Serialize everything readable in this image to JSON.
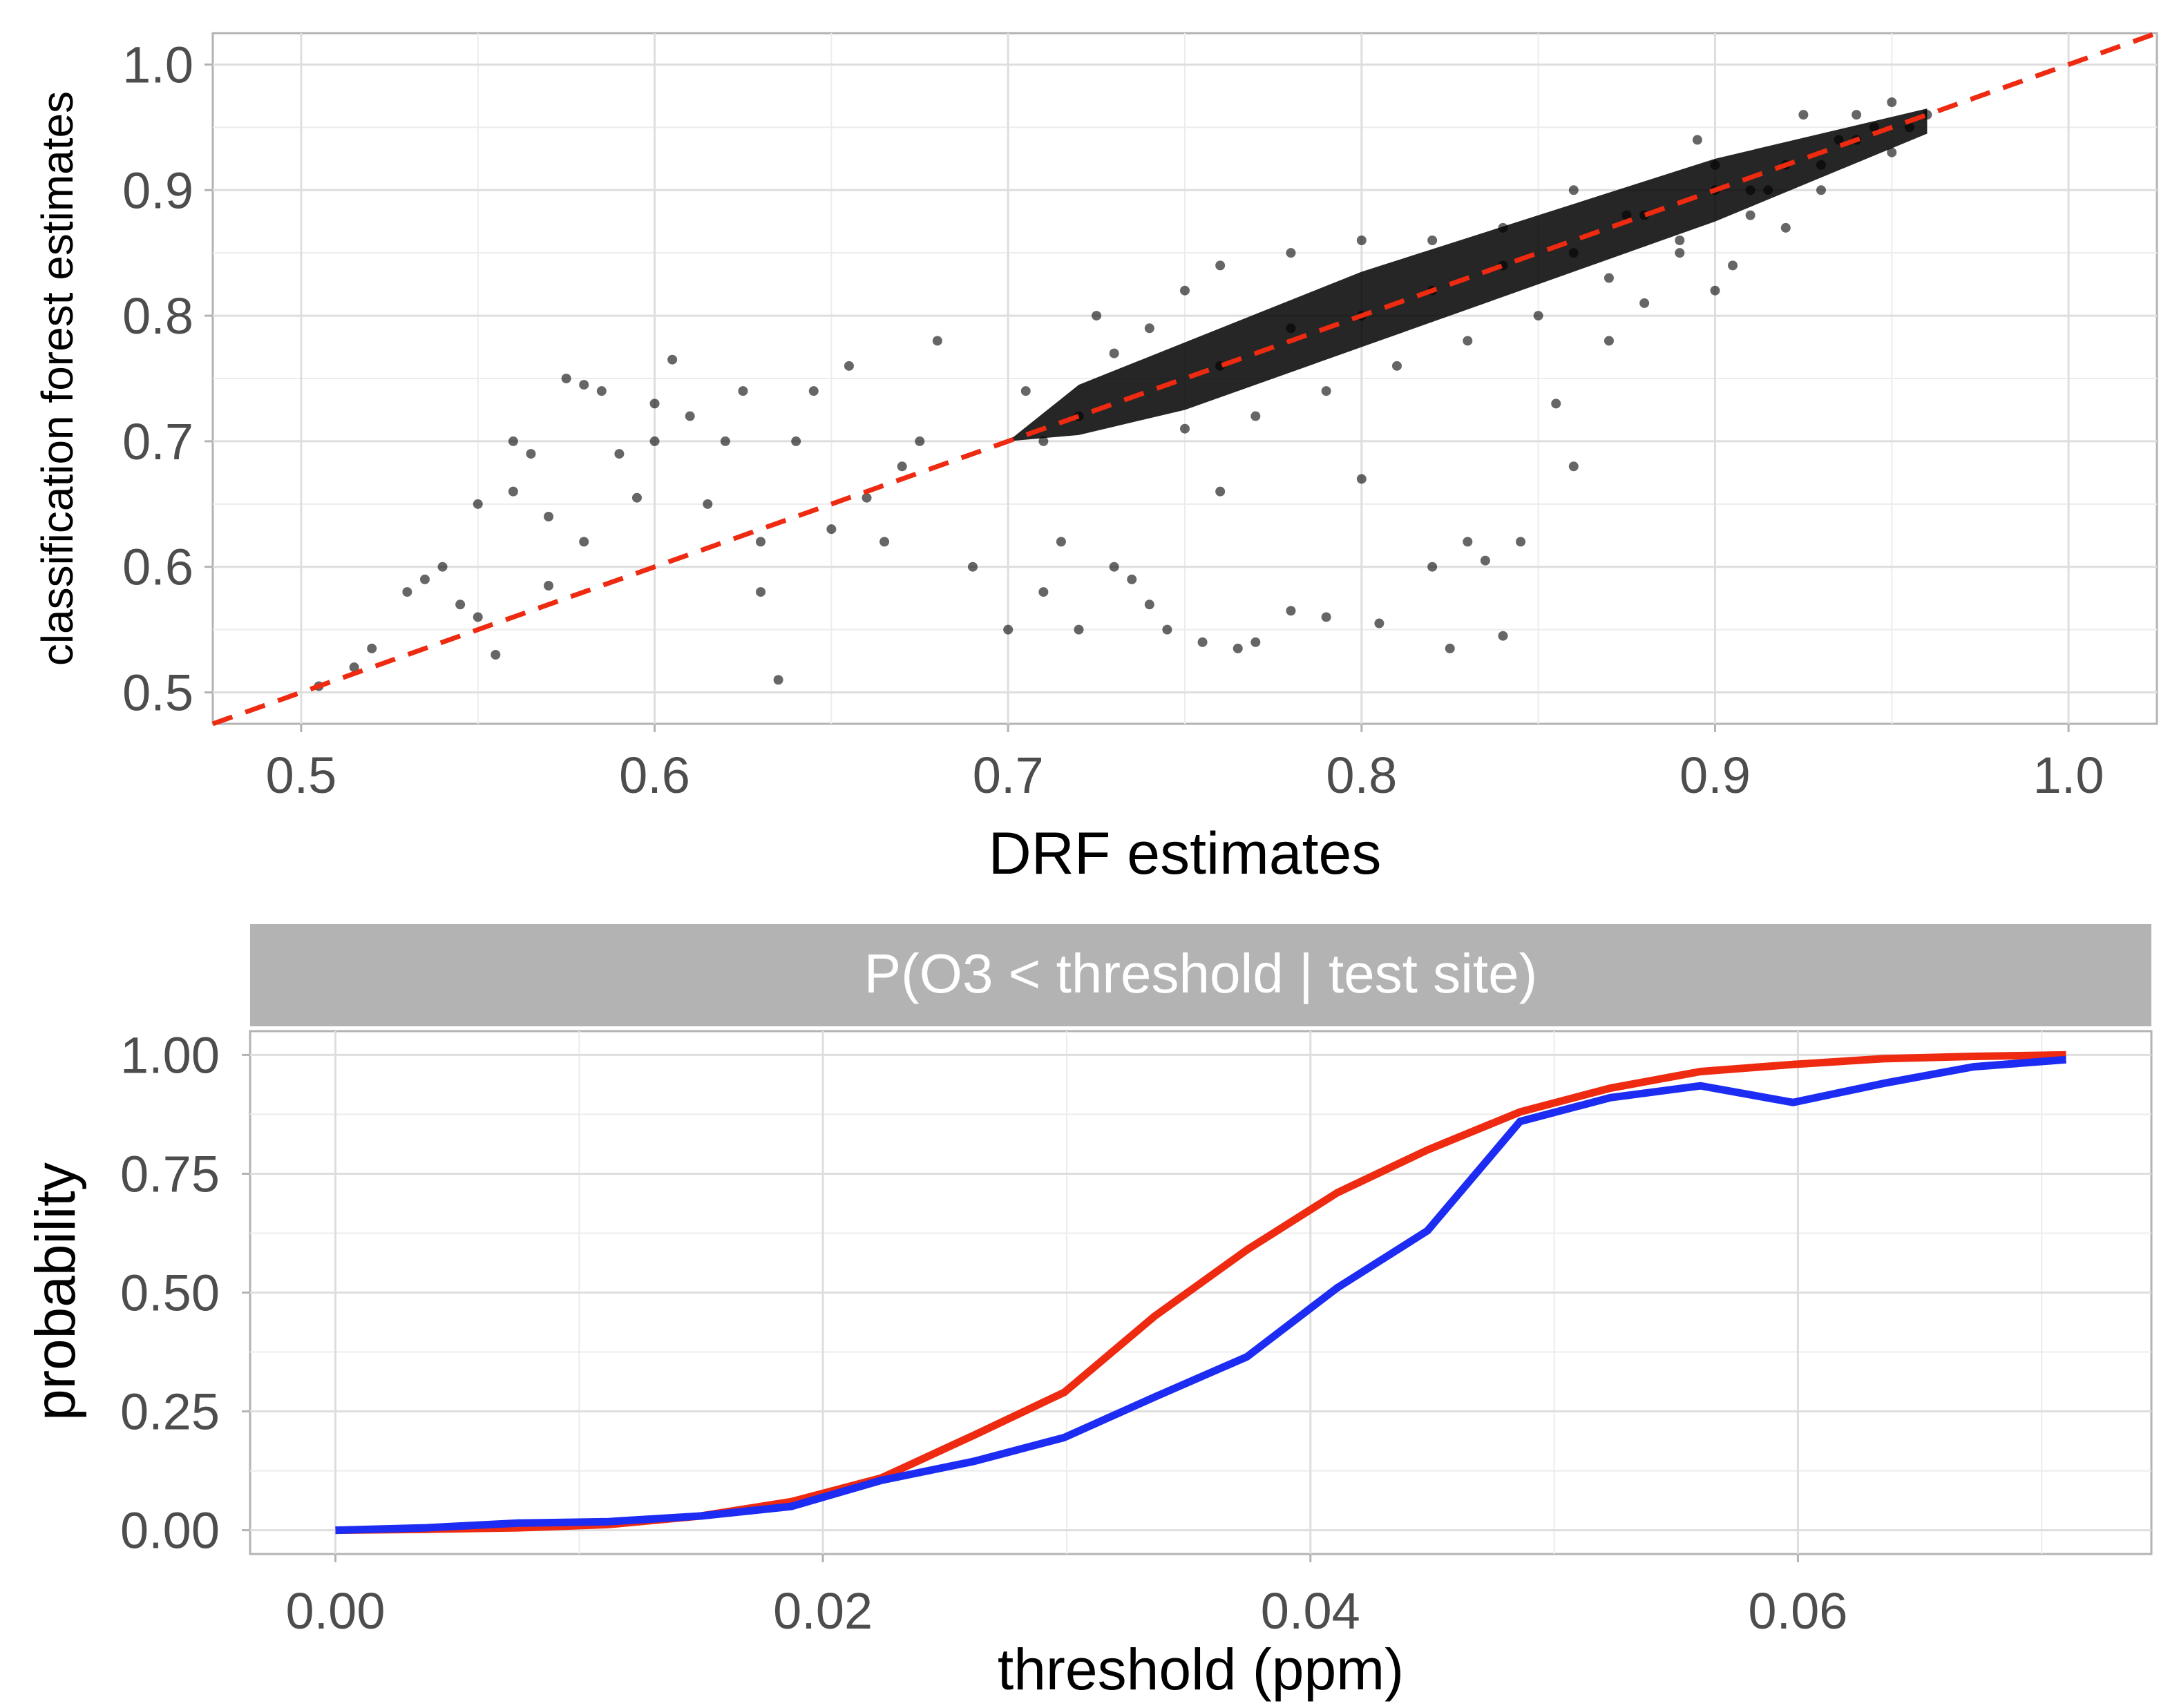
{
  "chart_data": [
    {
      "type": "scatter",
      "title": "",
      "xlabel": "DRF estimates",
      "ylabel": "classification forest estimates",
      "xlim": [
        0.475,
        1.025
      ],
      "ylim": [
        0.475,
        1.025
      ],
      "x_ticks": [
        "0.5",
        "0.6",
        "0.7",
        "0.8",
        "0.9",
        "1.0"
      ],
      "y_ticks": [
        "0.5",
        "0.6",
        "0.7",
        "0.8",
        "0.9",
        "1.0"
      ],
      "grid": true,
      "point_color": "#000000",
      "reference_line": {
        "style": "dashed",
        "color": "#ee2a10",
        "x": [
          0.475,
          1.025
        ],
        "y": [
          0.475,
          1.025
        ]
      },
      "points": [
        [
          0.505,
          0.505
        ],
        [
          0.515,
          0.52
        ],
        [
          0.52,
          0.535
        ],
        [
          0.53,
          0.58
        ],
        [
          0.535,
          0.59
        ],
        [
          0.54,
          0.6
        ],
        [
          0.545,
          0.57
        ],
        [
          0.55,
          0.56
        ],
        [
          0.55,
          0.65
        ],
        [
          0.555,
          0.53
        ],
        [
          0.56,
          0.66
        ],
        [
          0.56,
          0.7
        ],
        [
          0.565,
          0.69
        ],
        [
          0.57,
          0.64
        ],
        [
          0.57,
          0.585
        ],
        [
          0.575,
          0.75
        ],
        [
          0.58,
          0.745
        ],
        [
          0.58,
          0.62
        ],
        [
          0.585,
          0.74
        ],
        [
          0.59,
          0.69
        ],
        [
          0.595,
          0.655
        ],
        [
          0.6,
          0.7
        ],
        [
          0.6,
          0.73
        ],
        [
          0.605,
          0.765
        ],
        [
          0.61,
          0.72
        ],
        [
          0.615,
          0.65
        ],
        [
          0.62,
          0.7
        ],
        [
          0.625,
          0.74
        ],
        [
          0.63,
          0.62
        ],
        [
          0.63,
          0.58
        ],
        [
          0.635,
          0.51
        ],
        [
          0.64,
          0.7
        ],
        [
          0.645,
          0.74
        ],
        [
          0.65,
          0.63
        ],
        [
          0.655,
          0.76
        ],
        [
          0.66,
          0.655
        ],
        [
          0.665,
          0.62
        ],
        [
          0.67,
          0.68
        ],
        [
          0.675,
          0.7
        ],
        [
          0.68,
          0.78
        ],
        [
          0.69,
          0.6
        ],
        [
          0.7,
          0.55
        ],
        [
          0.705,
          0.74
        ],
        [
          0.71,
          0.58
        ],
        [
          0.715,
          0.62
        ],
        [
          0.72,
          0.55
        ],
        [
          0.725,
          0.8
        ],
        [
          0.73,
          0.6
        ],
        [
          0.735,
          0.59
        ],
        [
          0.74,
          0.57
        ],
        [
          0.745,
          0.55
        ],
        [
          0.75,
          0.82
        ],
        [
          0.755,
          0.54
        ],
        [
          0.76,
          0.66
        ],
        [
          0.765,
          0.535
        ],
        [
          0.77,
          0.54
        ],
        [
          0.78,
          0.565
        ],
        [
          0.79,
          0.56
        ],
        [
          0.8,
          0.67
        ],
        [
          0.805,
          0.555
        ],
        [
          0.82,
          0.6
        ],
        [
          0.825,
          0.535
        ],
        [
          0.83,
          0.62
        ],
        [
          0.835,
          0.605
        ],
        [
          0.84,
          0.545
        ],
        [
          0.845,
          0.62
        ],
        [
          0.855,
          0.73
        ],
        [
          0.86,
          0.68
        ],
        [
          0.87,
          0.78
        ],
        [
          0.875,
          0.88
        ],
        [
          0.88,
          0.81
        ],
        [
          0.89,
          0.86
        ],
        [
          0.895,
          0.94
        ],
        [
          0.9,
          0.92
        ],
        [
          0.905,
          0.84
        ],
        [
          0.91,
          0.9
        ],
        [
          0.915,
          0.9
        ],
        [
          0.92,
          0.87
        ],
        [
          0.925,
          0.96
        ],
        [
          0.93,
          0.92
        ],
        [
          0.935,
          0.94
        ],
        [
          0.94,
          0.96
        ],
        [
          0.945,
          0.95
        ],
        [
          0.95,
          0.97
        ],
        [
          0.955,
          0.95
        ],
        [
          0.96,
          0.96
        ],
        [
          0.9,
          0.82
        ],
        [
          0.86,
          0.9
        ],
        [
          0.84,
          0.87
        ],
        [
          0.82,
          0.86
        ],
        [
          0.8,
          0.86
        ],
        [
          0.78,
          0.85
        ],
        [
          0.76,
          0.84
        ],
        [
          0.74,
          0.79
        ],
        [
          0.72,
          0.72
        ],
        [
          0.71,
          0.7
        ],
        [
          0.73,
          0.77
        ],
        [
          0.75,
          0.71
        ],
        [
          0.77,
          0.72
        ],
        [
          0.79,
          0.74
        ],
        [
          0.81,
          0.76
        ],
        [
          0.83,
          0.78
        ],
        [
          0.85,
          0.8
        ],
        [
          0.87,
          0.83
        ],
        [
          0.89,
          0.85
        ],
        [
          0.91,
          0.88
        ],
        [
          0.93,
          0.9
        ],
        [
          0.95,
          0.93
        ],
        [
          0.76,
          0.76
        ],
        [
          0.78,
          0.79
        ],
        [
          0.8,
          0.8
        ],
        [
          0.82,
          0.82
        ],
        [
          0.84,
          0.84
        ],
        [
          0.86,
          0.85
        ],
        [
          0.88,
          0.88
        ],
        [
          0.9,
          0.9
        ],
        [
          0.92,
          0.92
        ],
        [
          0.94,
          0.94
        ]
      ]
    },
    {
      "type": "line",
      "title": "",
      "facet_label": "P(O3 < threshold | test site)",
      "xlabel": "threshold (ppm)",
      "ylabel": "probability",
      "xlim": [
        -0.0035,
        0.0745
      ],
      "ylim": [
        -0.05,
        1.05
      ],
      "x_ticks": [
        "0.00",
        "0.02",
        "0.04",
        "0.06"
      ],
      "y_ticks": [
        "0.00",
        "0.25",
        "0.50",
        "0.75",
        "1.00"
      ],
      "grid": true,
      "x": [
        0.0,
        0.0037,
        0.0075,
        0.0112,
        0.015,
        0.0187,
        0.0224,
        0.0262,
        0.0299,
        0.0336,
        0.0374,
        0.0411,
        0.0448,
        0.0486,
        0.0523,
        0.056,
        0.0598,
        0.0635,
        0.0672,
        0.071
      ],
      "series": [
        {
          "color": "#ee2a10",
          "values": [
            0.0,
            0.002,
            0.005,
            0.012,
            0.03,
            0.06,
            0.11,
            0.2,
            0.29,
            0.45,
            0.59,
            0.71,
            0.8,
            0.88,
            0.93,
            0.965,
            0.98,
            0.992,
            0.997,
            1.0
          ]
        },
        {
          "color": "#1c2cf2",
          "values": [
            0.0,
            0.005,
            0.015,
            0.018,
            0.03,
            0.05,
            0.105,
            0.145,
            0.195,
            0.28,
            0.365,
            0.51,
            0.63,
            0.86,
            0.91,
            0.935,
            0.9,
            0.94,
            0.975,
            0.99
          ]
        }
      ]
    }
  ]
}
